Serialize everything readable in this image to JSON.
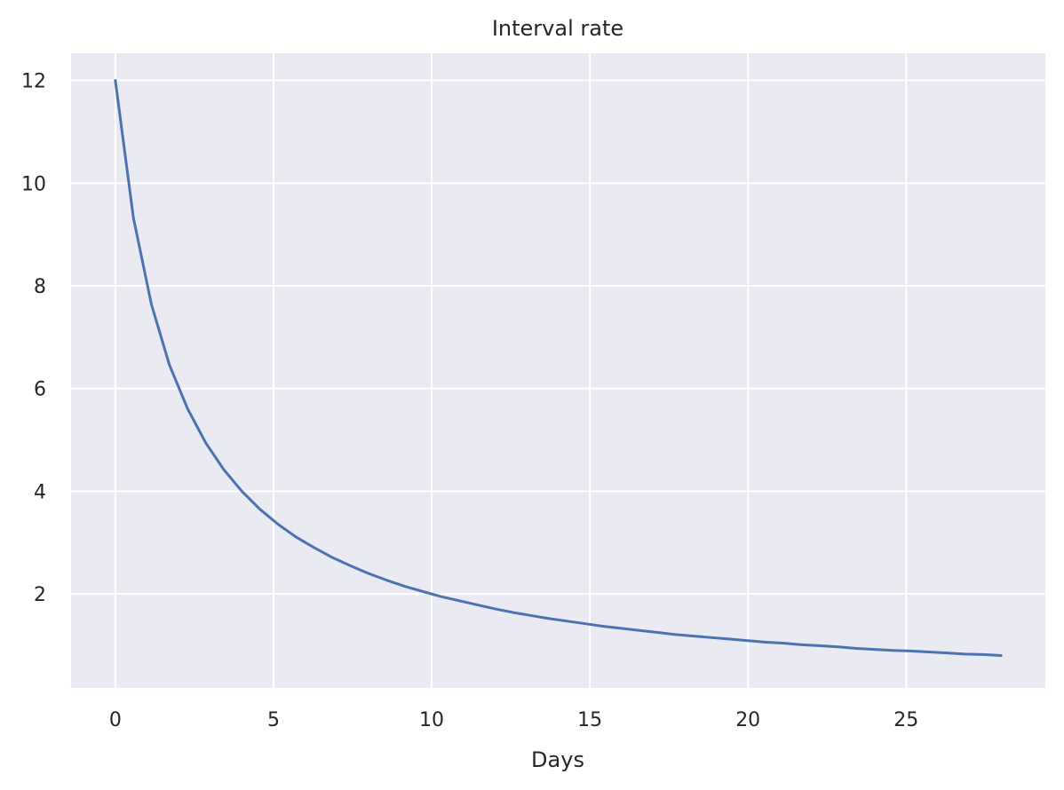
{
  "chart_data": {
    "type": "line",
    "title": "Interval rate",
    "xlabel": "Days",
    "ylabel": "",
    "xlim": [
      -1.4,
      29.4
    ],
    "ylim": [
      0.17,
      12.53
    ],
    "x_ticks": [
      0,
      5,
      10,
      15,
      20,
      25
    ],
    "y_ticks": [
      2,
      4,
      6,
      8,
      10,
      12
    ],
    "grid": true,
    "colors": {
      "background": "#EAEAF2",
      "grid": "#FFFFFF",
      "line": "#4C72B0"
    },
    "series": [
      {
        "x": [
          0,
          0.57,
          1.14,
          1.71,
          2.29,
          2.86,
          3.43,
          4.0,
          4.57,
          5.14,
          5.71,
          6.29,
          6.86,
          7.43,
          8.0,
          8.57,
          9.14,
          9.71,
          10.29,
          10.86,
          11.43,
          12.0,
          12.57,
          13.14,
          13.71,
          14.29,
          14.86,
          15.43,
          16.0,
          16.57,
          17.14,
          17.71,
          18.29,
          18.86,
          19.43,
          20.0,
          20.57,
          21.14,
          21.71,
          22.29,
          22.86,
          23.43,
          24.0,
          24.57,
          25.14,
          25.71,
          26.29,
          26.86,
          27.43,
          28.0
        ],
        "y": [
          12.0,
          9.33,
          7.64,
          6.46,
          5.6,
          4.94,
          4.42,
          4.0,
          3.65,
          3.36,
          3.11,
          2.9,
          2.71,
          2.55,
          2.4,
          2.27,
          2.15,
          2.05,
          1.95,
          1.87,
          1.79,
          1.71,
          1.64,
          1.58,
          1.52,
          1.47,
          1.42,
          1.37,
          1.33,
          1.29,
          1.25,
          1.21,
          1.18,
          1.15,
          1.12,
          1.09,
          1.06,
          1.04,
          1.01,
          0.99,
          0.97,
          0.94,
          0.92,
          0.9,
          0.89,
          0.87,
          0.85,
          0.83,
          0.82,
          0.8
        ]
      }
    ]
  }
}
